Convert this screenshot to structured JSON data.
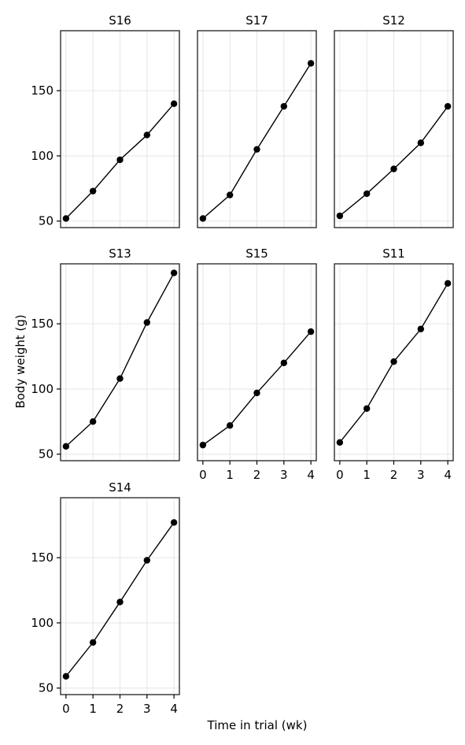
{
  "chart_data": {
    "type": "line",
    "xlabel": "Time in trial (wk)",
    "ylabel": "Body weight (g)",
    "xlim": [
      -0.2,
      4.2
    ],
    "ylim": [
      45,
      196
    ],
    "x_ticks": [
      0,
      1,
      2,
      3,
      4
    ],
    "y_ticks": [
      50,
      100,
      150
    ],
    "grid": true,
    "colors": {
      "line": "#000000",
      "point": "#000000",
      "grid": "#e6e6e6",
      "frame": "#1f1f1f"
    },
    "x": [
      0,
      1,
      2,
      3,
      4
    ],
    "panels": [
      {
        "title": "S16",
        "values": [
          52,
          73,
          97,
          116,
          140
        ]
      },
      {
        "title": "S17",
        "values": [
          52,
          70,
          105,
          138,
          171
        ]
      },
      {
        "title": "S12",
        "values": [
          54,
          71,
          90,
          110,
          138
        ]
      },
      {
        "title": "S13",
        "values": [
          56,
          75,
          108,
          151,
          189
        ]
      },
      {
        "title": "S15",
        "values": [
          57,
          72,
          97,
          120,
          144
        ]
      },
      {
        "title": "S11",
        "values": [
          59,
          85,
          121,
          146,
          181
        ]
      },
      {
        "title": "S14",
        "values": [
          59,
          85,
          116,
          148,
          177
        ]
      }
    ]
  }
}
